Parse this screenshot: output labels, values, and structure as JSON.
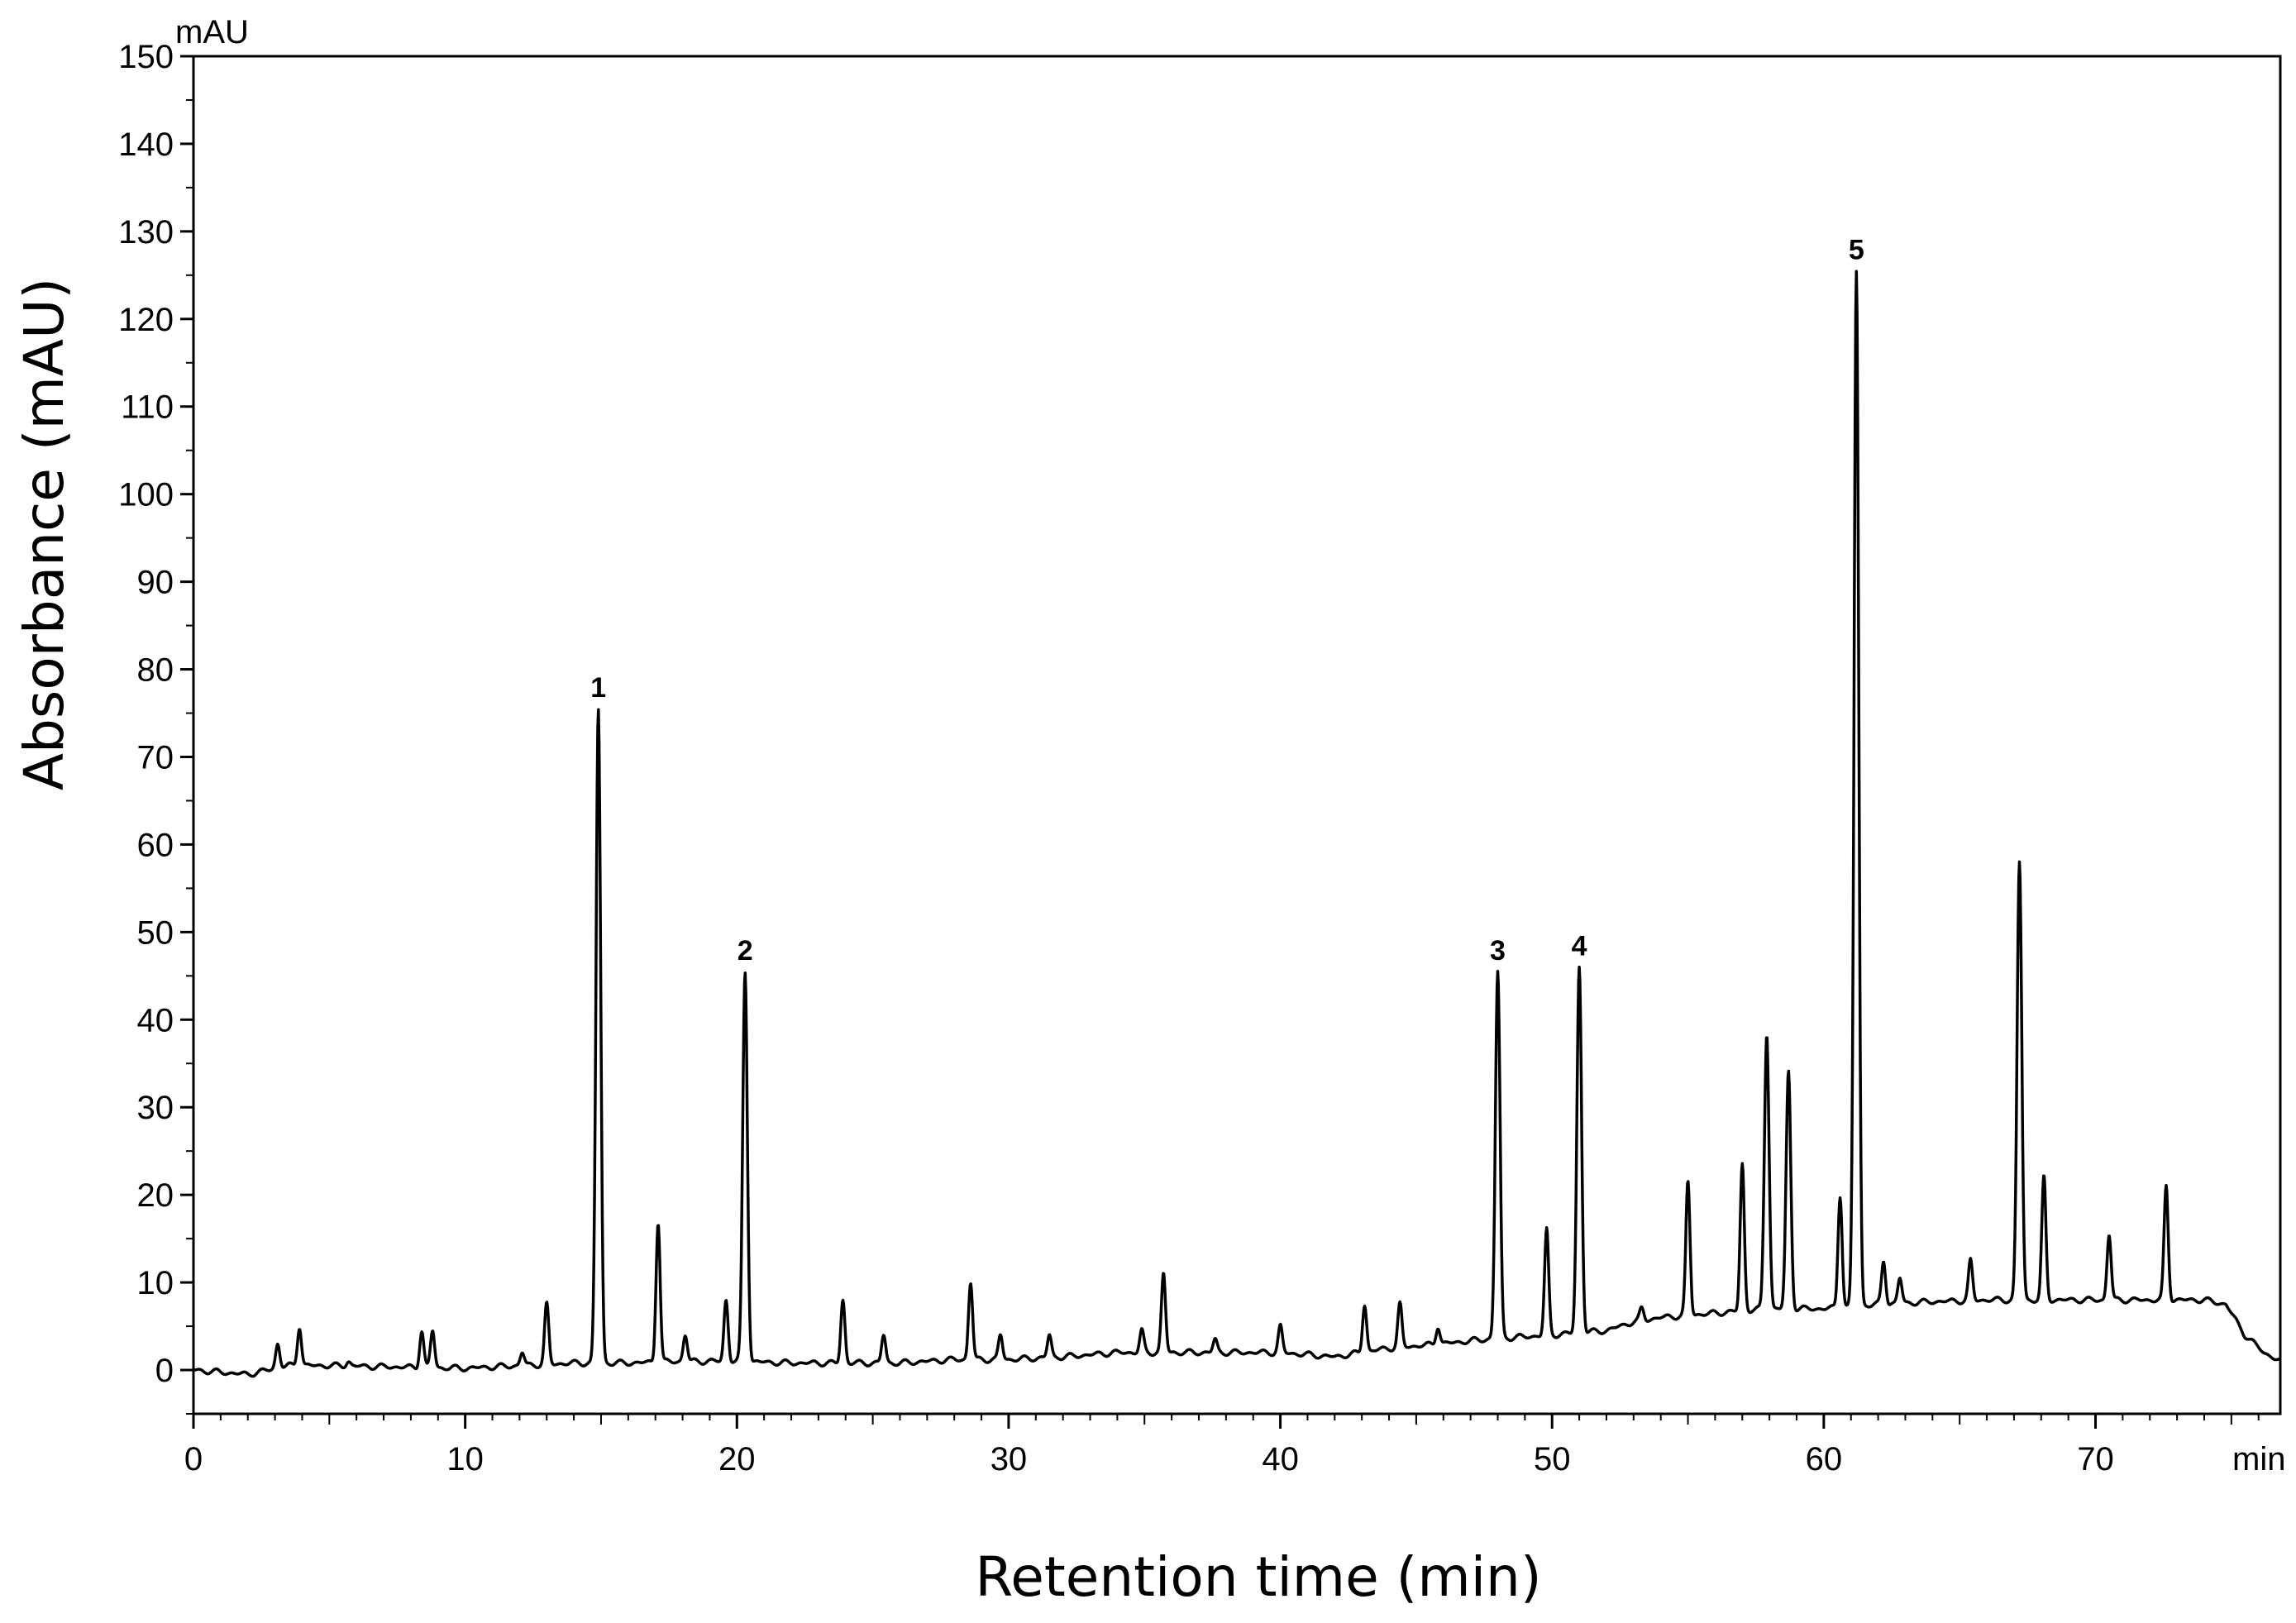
{
  "chart_data": {
    "type": "line",
    "title": "",
    "xlabel": "Retention time (min)",
    "ylabel": "Absorbance (mAU)",
    "y_unit_label": "mAU",
    "x_unit_label": "min",
    "xlim": [
      0,
      76.8
    ],
    "ylim": [
      -5,
      150
    ],
    "x_ticks": [
      0,
      10,
      20,
      30,
      40,
      50,
      60,
      70
    ],
    "y_ticks": [
      0,
      10,
      20,
      30,
      40,
      50,
      60,
      70,
      80,
      90,
      100,
      110,
      120,
      130,
      140,
      150
    ],
    "grid": false,
    "line_color": "#000000",
    "baseline": [
      [
        0,
        0
      ],
      [
        2,
        -0.5
      ],
      [
        3.5,
        0.5
      ],
      [
        5,
        0.5
      ],
      [
        10,
        0.2
      ],
      [
        12,
        0.5
      ],
      [
        14,
        0.8
      ],
      [
        16,
        0.8
      ],
      [
        18,
        1
      ],
      [
        20,
        1
      ],
      [
        22,
        0.8
      ],
      [
        24,
        0.8
      ],
      [
        26,
        0.8
      ],
      [
        28,
        1.2
      ],
      [
        30,
        1.2
      ],
      [
        32,
        1.5
      ],
      [
        34,
        2
      ],
      [
        36,
        2
      ],
      [
        38,
        2
      ],
      [
        40,
        2
      ],
      [
        42,
        1.5
      ],
      [
        44,
        2.5
      ],
      [
        46,
        3
      ],
      [
        47.5,
        3.5
      ],
      [
        50,
        4
      ],
      [
        52,
        4.5
      ],
      [
        53,
        5.5
      ],
      [
        54,
        6
      ],
      [
        56,
        6.5
      ],
      [
        58,
        7
      ],
      [
        60,
        7
      ],
      [
        62,
        7.5
      ],
      [
        64,
        7.8
      ],
      [
        66,
        8
      ],
      [
        68,
        8
      ],
      [
        70,
        8
      ],
      [
        72,
        8
      ],
      [
        74,
        8
      ],
      [
        74.8,
        7.5
      ],
      [
        75.5,
        4
      ],
      [
        76.2,
        2
      ],
      [
        76.8,
        1
      ]
    ],
    "peaks": [
      {
        "x": 3.1,
        "y": 3
      },
      {
        "x": 3.9,
        "y": 5
      },
      {
        "x": 5.7,
        "y": 1
      },
      {
        "x": 8.4,
        "y": 4.5
      },
      {
        "x": 8.8,
        "y": 4.5
      },
      {
        "x": 12.1,
        "y": 2
      },
      {
        "x": 13.0,
        "y": 7.5
      },
      {
        "x": 14.9,
        "y": 75.5
      },
      {
        "x": 17.1,
        "y": 17
      },
      {
        "x": 18.1,
        "y": 4
      },
      {
        "x": 19.6,
        "y": 8
      },
      {
        "x": 20.3,
        "y": 45.5
      },
      {
        "x": 23.9,
        "y": 8
      },
      {
        "x": 25.4,
        "y": 4
      },
      {
        "x": 28.6,
        "y": 10
      },
      {
        "x": 29.7,
        "y": 4
      },
      {
        "x": 31.5,
        "y": 4
      },
      {
        "x": 34.9,
        "y": 4.5
      },
      {
        "x": 35.7,
        "y": 11
      },
      {
        "x": 37.6,
        "y": 3.5
      },
      {
        "x": 40.0,
        "y": 5
      },
      {
        "x": 43.1,
        "y": 7.5
      },
      {
        "x": 44.4,
        "y": 7.5
      },
      {
        "x": 45.8,
        "y": 5
      },
      {
        "x": 48.0,
        "y": 45.5
      },
      {
        "x": 49.8,
        "y": 16
      },
      {
        "x": 51.0,
        "y": 46
      },
      {
        "x": 53.3,
        "y": 7
      },
      {
        "x": 55.0,
        "y": 21.5
      },
      {
        "x": 57.0,
        "y": 23.5
      },
      {
        "x": 57.9,
        "y": 38.5
      },
      {
        "x": 58.7,
        "y": 34
      },
      {
        "x": 60.6,
        "y": 20
      },
      {
        "x": 61.2,
        "y": 125.5
      },
      {
        "x": 62.2,
        "y": 12.5
      },
      {
        "x": 62.8,
        "y": 10.5
      },
      {
        "x": 65.4,
        "y": 12.5
      },
      {
        "x": 67.2,
        "y": 58
      },
      {
        "x": 68.1,
        "y": 22
      },
      {
        "x": 70.5,
        "y": 15.5
      },
      {
        "x": 72.6,
        "y": 21
      }
    ],
    "labeled_peaks": [
      {
        "label": "1",
        "x": 14.9,
        "y": 75.5
      },
      {
        "label": "2",
        "x": 20.3,
        "y": 45.5
      },
      {
        "label": "3",
        "x": 48.0,
        "y": 45.5
      },
      {
        "label": "4",
        "x": 51.0,
        "y": 46
      },
      {
        "label": "5",
        "x": 61.2,
        "y": 125.5
      }
    ]
  }
}
